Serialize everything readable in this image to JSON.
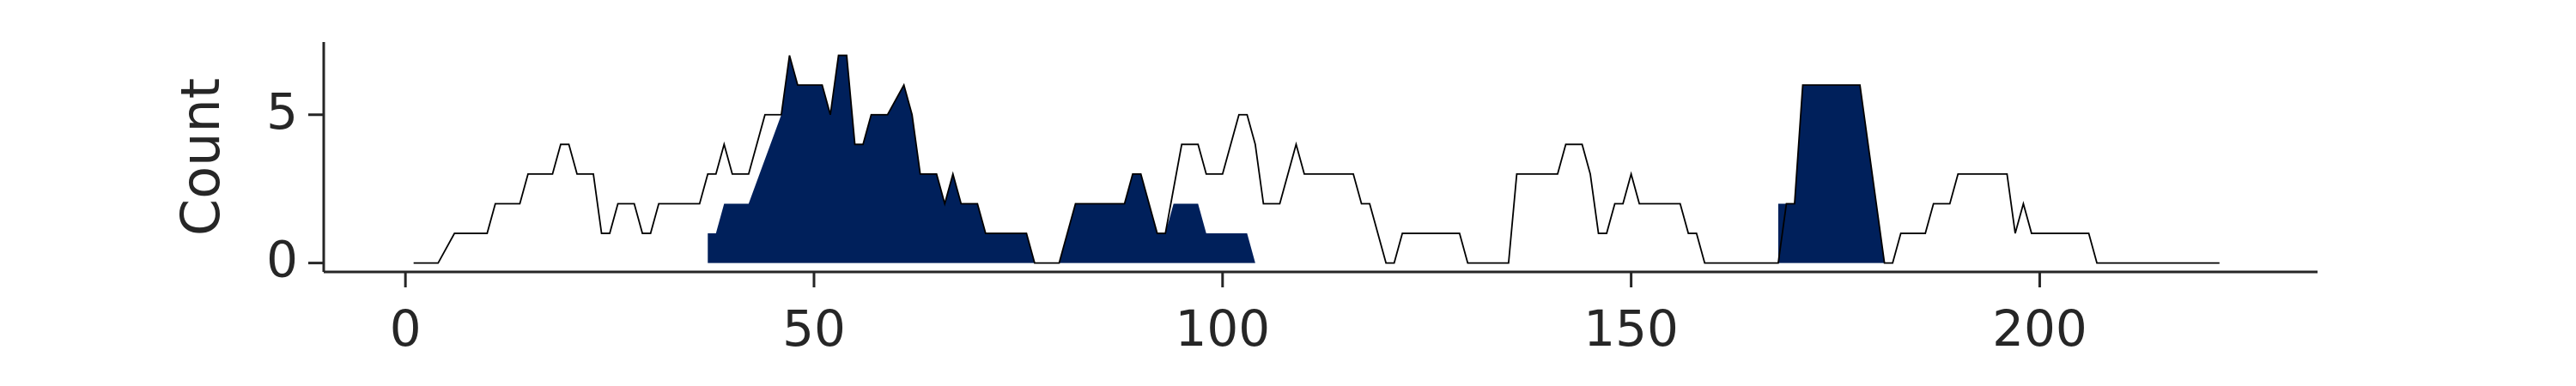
{
  "chart_data": {
    "type": "line",
    "ylabel": "Count",
    "xlim": [
      -10,
      234
    ],
    "ylim": [
      -0.3,
      7.45
    ],
    "xticks": [
      0,
      50,
      100,
      150,
      200
    ],
    "yticks": [
      0,
      5
    ],
    "grid": false,
    "series": [
      {
        "type": "area",
        "color": "#00205b",
        "x": [
          37,
          38,
          39,
          42,
          46,
          47,
          48,
          51,
          52,
          53,
          54,
          55,
          56,
          57,
          59,
          61,
          62,
          63,
          65,
          66,
          67,
          68,
          70,
          71,
          76,
          77,
          80,
          82,
          88,
          89,
          90,
          92,
          93,
          94,
          97,
          98,
          103,
          104,
          null,
          168,
          170,
          171,
          178,
          181
        ],
        "values": [
          1,
          1,
          2,
          2,
          5,
          7,
          6,
          6,
          5,
          7,
          7,
          4,
          4,
          5,
          5,
          6,
          5,
          3,
          3,
          2,
          3,
          2,
          2,
          1,
          1,
          0,
          0,
          2,
          2,
          3,
          3,
          1,
          1,
          2,
          2,
          1,
          1,
          0,
          null,
          2,
          2,
          6,
          6,
          0
        ]
      },
      {
        "type": "line",
        "color": "#000000",
        "x": [
          1,
          4,
          6,
          10,
          11,
          14,
          15,
          18,
          19,
          20,
          21,
          23,
          24,
          25,
          26,
          28,
          29,
          30,
          31,
          36,
          37,
          38,
          39,
          40,
          42,
          44,
          46,
          47,
          48,
          51,
          52,
          53,
          54,
          55,
          56,
          57,
          59,
          61,
          62,
          63,
          65,
          66,
          67,
          68,
          70,
          71,
          76,
          77,
          80,
          82,
          88,
          89,
          90,
          92,
          93,
          95,
          97,
          98,
          100,
          102,
          103,
          104,
          105,
          107,
          109,
          110,
          116,
          117,
          118,
          120,
          121,
          122,
          129,
          130,
          135,
          136,
          141,
          142,
          144,
          145,
          146,
          147,
          148,
          149,
          150,
          151,
          156,
          157,
          158,
          159,
          168,
          169,
          170,
          171,
          178,
          181,
          182,
          183,
          186,
          187,
          189,
          190,
          196,
          197,
          198,
          199,
          206,
          207,
          222
        ],
        "values": [
          0,
          0,
          1,
          1,
          2,
          2,
          3,
          3,
          4,
          4,
          3,
          3,
          1,
          1,
          2,
          2,
          1,
          1,
          2,
          2,
          3,
          3,
          4,
          3,
          3,
          5,
          5,
          7,
          6,
          6,
          5,
          7,
          7,
          4,
          4,
          5,
          5,
          6,
          5,
          3,
          3,
          2,
          3,
          2,
          2,
          1,
          1,
          0,
          0,
          2,
          2,
          3,
          3,
          1,
          1,
          4,
          4,
          3,
          3,
          5,
          5,
          4,
          2,
          2,
          4,
          3,
          3,
          2,
          2,
          0,
          0,
          1,
          1,
          0,
          0,
          3,
          3,
          4,
          4,
          3,
          1,
          1,
          2,
          2,
          3,
          2,
          2,
          1,
          1,
          0,
          0,
          2,
          2,
          6,
          6,
          0,
          0,
          1,
          1,
          2,
          2,
          3,
          3,
          1,
          2,
          1,
          1,
          0,
          0
        ]
      }
    ]
  }
}
